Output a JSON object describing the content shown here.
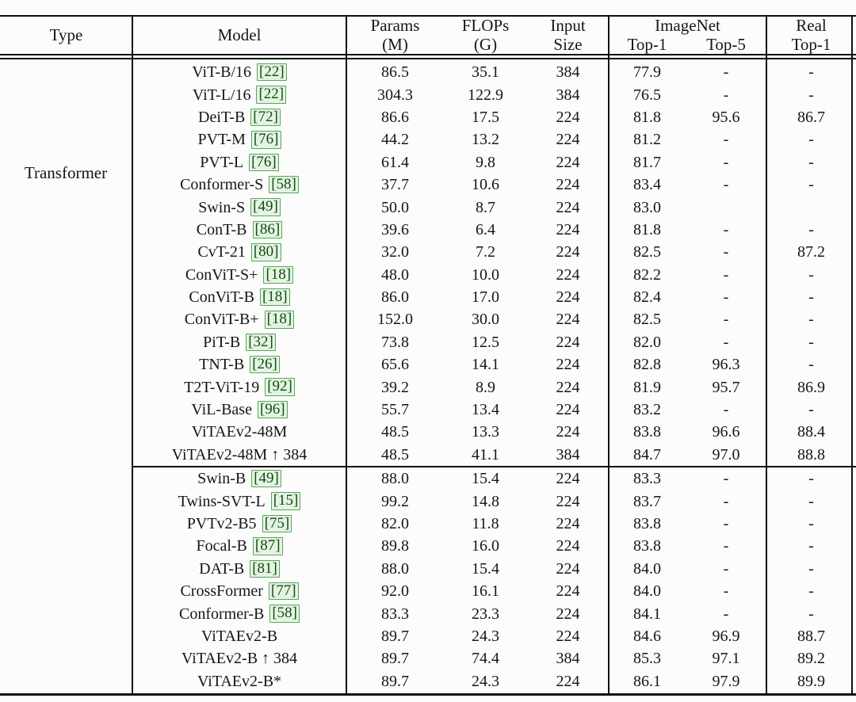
{
  "table": {
    "headers": {
      "type": "Type",
      "model": "Model",
      "params_line1": "Params",
      "params_line2": "(M)",
      "flops_line1": "FLOPs",
      "flops_line2": "(G)",
      "input_line1": "Input",
      "input_line2": "Size",
      "imagenet": "ImageNet",
      "top1": "Top-1",
      "top5": "Top-5",
      "real_line1": "Real",
      "real_line2": "Top-1"
    },
    "type_label": "Transformer",
    "groups": [
      {
        "rows": [
          {
            "model": "ViT-B/16",
            "ref": "22",
            "params": "86.5",
            "flops": "35.1",
            "input": "384",
            "top1": "77.9",
            "top5": "-",
            "real": "-"
          },
          {
            "model": "ViT-L/16",
            "ref": "22",
            "params": "304.3",
            "flops": "122.9",
            "input": "384",
            "top1": "76.5",
            "top5": "-",
            "real": "-"
          },
          {
            "model": "DeiT-B",
            "ref": "72",
            "params": "86.6",
            "flops": "17.5",
            "input": "224",
            "top1": "81.8",
            "top5": "95.6",
            "real": "86.7"
          },
          {
            "model": "PVT-M",
            "ref": "76",
            "params": "44.2",
            "flops": "13.2",
            "input": "224",
            "top1": "81.2",
            "top5": "-",
            "real": "-"
          },
          {
            "model": "PVT-L",
            "ref": "76",
            "params": "61.4",
            "flops": "9.8",
            "input": "224",
            "top1": "81.7",
            "top5": "-",
            "real": "-"
          },
          {
            "model": "Conformer-S",
            "ref": "58",
            "params": "37.7",
            "flops": "10.6",
            "input": "224",
            "top1": "83.4",
            "top5": "-",
            "real": "-"
          },
          {
            "model": "Swin-S",
            "ref": "49",
            "params": "50.0",
            "flops": "8.7",
            "input": "224",
            "top1": "83.0",
            "top5": "",
            "real": ""
          },
          {
            "model": "ConT-B",
            "ref": "86",
            "params": "39.6",
            "flops": "6.4",
            "input": "224",
            "top1": "81.8",
            "top5": "-",
            "real": "-"
          },
          {
            "model": "CvT-21",
            "ref": "80",
            "params": "32.0",
            "flops": "7.2",
            "input": "224",
            "top1": "82.5",
            "top5": "-",
            "real": "87.2"
          },
          {
            "model": "ConViT-S+",
            "ref": "18",
            "params": "48.0",
            "flops": "10.0",
            "input": "224",
            "top1": "82.2",
            "top5": "-",
            "real": "-"
          },
          {
            "model": "ConViT-B",
            "ref": "18",
            "params": "86.0",
            "flops": "17.0",
            "input": "224",
            "top1": "82.4",
            "top5": "-",
            "real": "-"
          },
          {
            "model": "ConViT-B+",
            "ref": "18",
            "params": "152.0",
            "flops": "30.0",
            "input": "224",
            "top1": "82.5",
            "top5": "-",
            "real": "-"
          },
          {
            "model": "PiT-B",
            "ref": "32",
            "params": "73.8",
            "flops": "12.5",
            "input": "224",
            "top1": "82.0",
            "top5": "-",
            "real": "-"
          },
          {
            "model": "TNT-B",
            "ref": "26",
            "params": "65.6",
            "flops": "14.1",
            "input": "224",
            "top1": "82.8",
            "top5": "96.3",
            "real": "-"
          },
          {
            "model": "T2T-ViT-19",
            "ref": "92",
            "params": "39.2",
            "flops": "8.9",
            "input": "224",
            "top1": "81.9",
            "top5": "95.7",
            "real": "86.9"
          },
          {
            "model": "ViL-Base",
            "ref": "96",
            "params": "55.7",
            "flops": "13.4",
            "input": "224",
            "top1": "83.2",
            "top5": "-",
            "real": "-"
          },
          {
            "model": "ViTAEv2-48M",
            "ref": null,
            "params": "48.5",
            "flops": "13.3",
            "input": "224",
            "top1": "83.8",
            "top5": "96.6",
            "real": "88.4"
          },
          {
            "model": "ViTAEv2-48M ↑ 384",
            "ref": null,
            "params": "48.5",
            "flops": "41.1",
            "input": "384",
            "top1": "84.7",
            "top5": "97.0",
            "real": "88.8"
          }
        ]
      },
      {
        "rows": [
          {
            "model": "Swin-B",
            "ref": "49",
            "params": "88.0",
            "flops": "15.4",
            "input": "224",
            "top1": "83.3",
            "top5": "-",
            "real": "-"
          },
          {
            "model": "Twins-SVT-L",
            "ref": "15",
            "params": "99.2",
            "flops": "14.8",
            "input": "224",
            "top1": "83.7",
            "top5": "-",
            "real": "-"
          },
          {
            "model": "PVTv2-B5",
            "ref": "75",
            "params": "82.0",
            "flops": "11.8",
            "input": "224",
            "top1": "83.8",
            "top5": "-",
            "real": "-"
          },
          {
            "model": "Focal-B",
            "ref": "87",
            "params": "89.8",
            "flops": "16.0",
            "input": "224",
            "top1": "83.8",
            "top5": "-",
            "real": "-"
          },
          {
            "model": "DAT-B",
            "ref": "81",
            "params": "88.0",
            "flops": "15.4",
            "input": "224",
            "top1": "84.0",
            "top5": "-",
            "real": "-"
          },
          {
            "model": "CrossFormer",
            "ref": "77",
            "params": "92.0",
            "flops": "16.1",
            "input": "224",
            "top1": "84.0",
            "top5": "-",
            "real": "-"
          },
          {
            "model": "Conformer-B",
            "ref": "58",
            "params": "83.3",
            "flops": "23.3",
            "input": "224",
            "top1": "84.1",
            "top5": "-",
            "real": "-"
          },
          {
            "model": "ViTAEv2-B",
            "ref": null,
            "params": "89.7",
            "flops": "24.3",
            "input": "224",
            "top1": "84.6",
            "top5": "96.9",
            "real": "88.7"
          },
          {
            "model": "ViTAEv2-B ↑ 384",
            "ref": null,
            "params": "89.7",
            "flops": "74.4",
            "input": "384",
            "top1": "85.3",
            "top5": "97.1",
            "real": "89.2"
          },
          {
            "model": "ViTAEv2-B*",
            "ref": null,
            "params": "89.7",
            "flops": "24.3",
            "input": "224",
            "top1": "86.1",
            "top5": "97.9",
            "real": "89.9"
          }
        ]
      }
    ]
  },
  "colors": {
    "rule": "#101010",
    "citation_border": "#59a659",
    "citation_background": "#e4f4e2",
    "citation_text": "#134a13"
  }
}
